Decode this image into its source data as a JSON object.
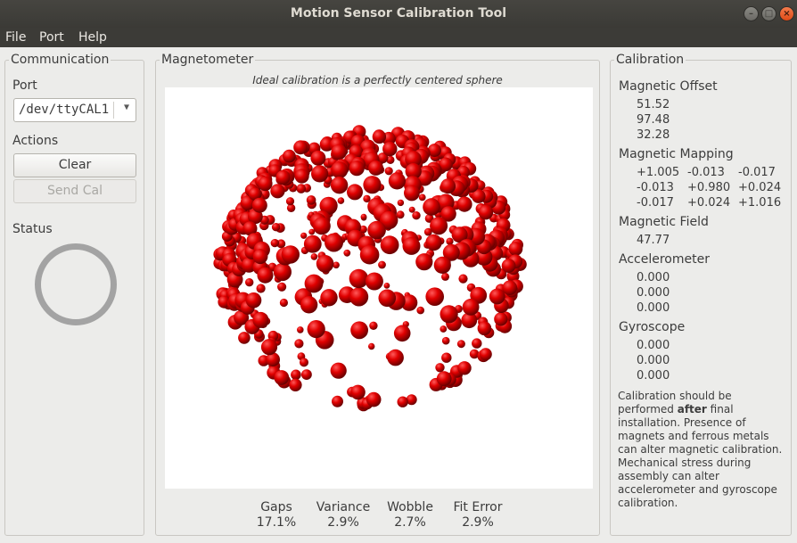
{
  "window": {
    "title": "Motion Sensor Calibration Tool"
  },
  "menu": {
    "file": "File",
    "port": "Port",
    "help": "Help"
  },
  "communication": {
    "title": "Communication",
    "port_label": "Port",
    "port_value": "/dev/ttyCAL1",
    "actions_label": "Actions",
    "clear_label": "Clear",
    "send_cal_label": "Send Cal",
    "status_label": "Status"
  },
  "magnetometer": {
    "title": "Magnetometer",
    "hint": "Ideal calibration is a perfectly centered sphere",
    "stats": [
      {
        "label": "Gaps",
        "value": "17.1%"
      },
      {
        "label": "Variance",
        "value": "2.9%"
      },
      {
        "label": "Wobble",
        "value": "2.7%"
      },
      {
        "label": "Fit Error",
        "value": "2.9%"
      }
    ],
    "point_color": "#e00000"
  },
  "calibration": {
    "title": "Calibration",
    "offset_label": "Magnetic Offset",
    "offset": [
      "51.52",
      "97.48",
      "32.28"
    ],
    "mapping_label": "Magnetic Mapping",
    "mapping": [
      [
        "+1.005",
        "-0.013",
        "-0.017"
      ],
      [
        "-0.013",
        "+0.980",
        "+0.024"
      ],
      [
        "-0.017",
        "+0.024",
        "+1.016"
      ]
    ],
    "field_label": "Magnetic Field",
    "field": "47.77",
    "accel_label": "Accelerometer",
    "accel": [
      "0.000",
      "0.000",
      "0.000"
    ],
    "gyro_label": "Gyroscope",
    "gyro": [
      "0.000",
      "0.000",
      "0.000"
    ],
    "note_pre": "Calibration should be performed ",
    "note_bold": "after",
    "note_post": " final installation.  Presence of magnets and ferrous metals can alter magnetic calibration. Mechanical stress during assembly can alter accelerometer and gyroscope calibration."
  }
}
